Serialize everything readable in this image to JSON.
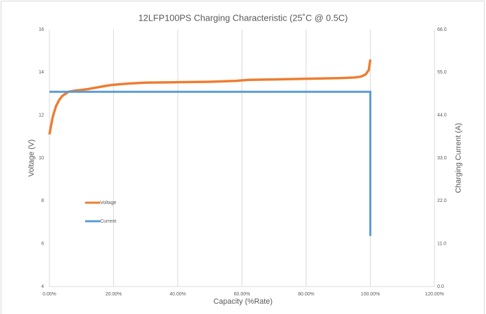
{
  "chart_data": {
    "type": "line",
    "title": "12LFP100PS Charging Characteristic (25˚C @ 0.5C)",
    "xlabel": "Capacity (%Rate)",
    "ylabel": "Voltage (V)",
    "y2label": "Charging Current (A)",
    "xlim": [
      0,
      120
    ],
    "xticks": [
      {
        "value": 0,
        "label": "0.00%"
      },
      {
        "value": 20,
        "label": "20.00%"
      },
      {
        "value": 40,
        "label": "40.00%"
      },
      {
        "value": 60,
        "label": "60.00%"
      },
      {
        "value": 80,
        "label": "80.00%"
      },
      {
        "value": 100,
        "label": "100.00%"
      },
      {
        "value": 120,
        "label": "120.00%"
      }
    ],
    "ylim": [
      4,
      16
    ],
    "yticks": [
      4,
      6,
      8,
      10,
      12,
      14,
      16
    ],
    "y2lim": [
      0,
      66
    ],
    "y2ticks": [
      {
        "value": 0,
        "label": "0.0"
      },
      {
        "value": 11,
        "label": "11.0"
      },
      {
        "value": 22,
        "label": "22.0"
      },
      {
        "value": 33,
        "label": "33.0"
      },
      {
        "value": 44,
        "label": "44.0"
      },
      {
        "value": 55,
        "label": "55.0"
      },
      {
        "value": 66,
        "label": "66.0"
      }
    ],
    "grid": true,
    "legend": "left",
    "series": [
      {
        "name": "Voltage",
        "color": "#ed7d31",
        "x": [
          0,
          1,
          2,
          3,
          4,
          5,
          6,
          8,
          10,
          12,
          15,
          18,
          20,
          25,
          30,
          40,
          50,
          58,
          62,
          70,
          80,
          90,
          95,
          97,
          98.5,
          99.5,
          100
        ],
        "values": [
          11.1,
          11.9,
          12.4,
          12.7,
          12.9,
          13.0,
          13.1,
          13.15,
          13.18,
          13.22,
          13.3,
          13.38,
          13.42,
          13.48,
          13.52,
          13.54,
          13.56,
          13.6,
          13.65,
          13.67,
          13.7,
          13.73,
          13.76,
          13.8,
          13.9,
          14.1,
          14.6
        ]
      },
      {
        "name": "Current",
        "color": "#5b9bd5",
        "axis": "y2",
        "x": [
          0,
          100,
          100
        ],
        "values": [
          50,
          50,
          13
        ]
      }
    ]
  }
}
